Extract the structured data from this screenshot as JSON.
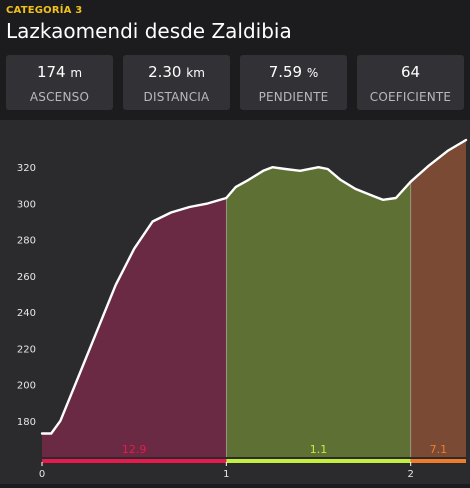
{
  "header": {
    "category": "CATEGORÍA 3",
    "title": "Lazkaomendi desde Zaldibia"
  },
  "stats": [
    {
      "value": "174",
      "unit": "m",
      "label": "ASCENSO"
    },
    {
      "value": "2.30",
      "unit": "km",
      "label": "DISTANCIA"
    },
    {
      "value": "7.59",
      "unit": "%",
      "label": "PENDIENTE"
    },
    {
      "value": "64",
      "unit": "",
      "label": "COEFICIENTE"
    }
  ],
  "chart_data": {
    "type": "area",
    "title": "",
    "xlabel": "",
    "ylabel": "",
    "xlim": [
      0,
      2.3
    ],
    "ylim": [
      160,
      335
    ],
    "x_ticks": [
      "0",
      "1",
      "2"
    ],
    "y_ticks": [
      "180",
      "200",
      "220",
      "240",
      "260",
      "280",
      "300",
      "320"
    ],
    "grid": false,
    "profile": [
      [
        0.0,
        173
      ],
      [
        0.05,
        173
      ],
      [
        0.1,
        180
      ],
      [
        0.2,
        205
      ],
      [
        0.3,
        230
      ],
      [
        0.4,
        255
      ],
      [
        0.5,
        275
      ],
      [
        0.6,
        290
      ],
      [
        0.7,
        295
      ],
      [
        0.8,
        298
      ],
      [
        0.9,
        300
      ],
      [
        1.0,
        303
      ],
      [
        1.05,
        309
      ],
      [
        1.12,
        313
      ],
      [
        1.2,
        318
      ],
      [
        1.25,
        320
      ],
      [
        1.32,
        319
      ],
      [
        1.4,
        318
      ],
      [
        1.5,
        320
      ],
      [
        1.55,
        319
      ],
      [
        1.62,
        313
      ],
      [
        1.7,
        308
      ],
      [
        1.8,
        304
      ],
      [
        1.85,
        302
      ],
      [
        1.92,
        303
      ],
      [
        2.0,
        312
      ],
      [
        2.1,
        321
      ],
      [
        2.2,
        329
      ],
      [
        2.3,
        335
      ]
    ],
    "segments": [
      {
        "from": 0,
        "to": 1,
        "label": "12.9",
        "fill": "#6b2a43",
        "bar": "#e8194d",
        "text": "#e8194d"
      },
      {
        "from": 1,
        "to": 2,
        "label": "1.1",
        "fill": "#5e7034",
        "bar": "#c3f03a",
        "text": "#c3f03a"
      },
      {
        "from": 2,
        "to": 2.3,
        "label": "7.1",
        "fill": "#7a4a34",
        "bar": "#f07c2b",
        "text": "#f07c2b"
      }
    ]
  }
}
